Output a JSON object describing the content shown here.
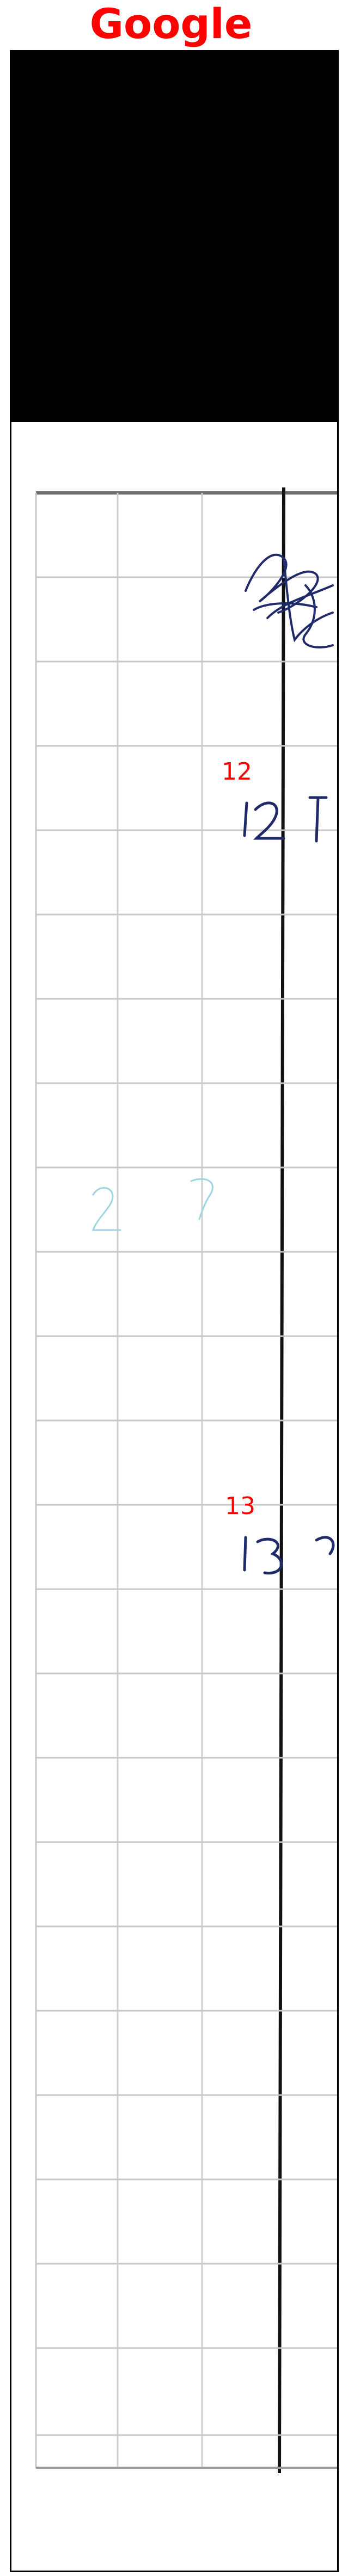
{
  "header": {
    "title": "Google"
  },
  "annotations": [
    {
      "label": "12"
    },
    {
      "label": "13"
    }
  ],
  "colors": {
    "title": "#ff0000",
    "redaction": "#000000",
    "frame": "#000000",
    "grid": "#c8c8c8",
    "ink": "#1f2a6b",
    "annotation": "#ff0000"
  }
}
